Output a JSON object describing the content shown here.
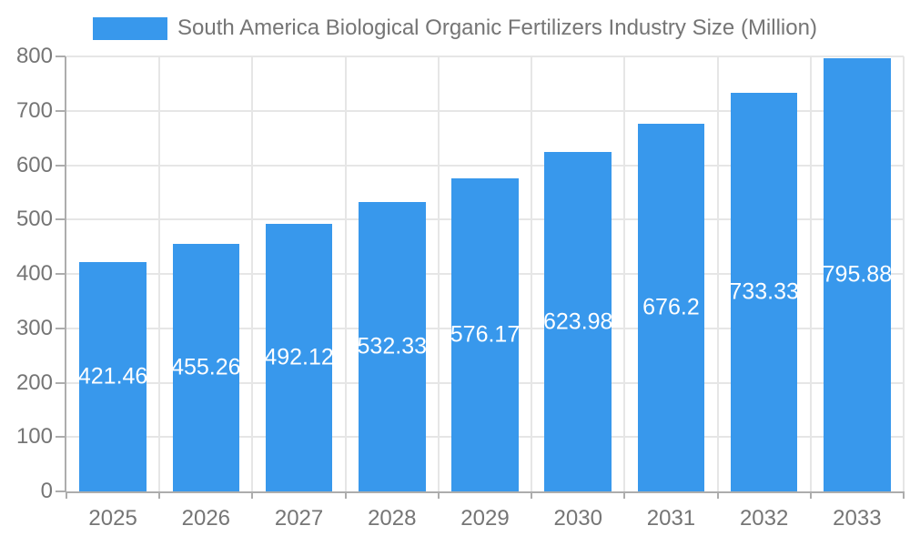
{
  "chart_data": {
    "type": "bar",
    "title": "South America Biological Organic Fertilizers Industry Size (Million)",
    "categories": [
      "2025",
      "2026",
      "2027",
      "2028",
      "2029",
      "2030",
      "2031",
      "2032",
      "2033"
    ],
    "values": [
      421.46,
      455.26,
      492.12,
      532.33,
      576.17,
      623.98,
      676.2,
      733.33,
      795.88
    ],
    "value_labels": [
      "421.46",
      "455.26",
      "492.12",
      "532.33",
      "576.17",
      "623.98",
      "676.2",
      "733.33",
      "795.88"
    ],
    "xlabel": "",
    "ylabel": "",
    "ylim": [
      0,
      800
    ],
    "yticks": [
      0,
      100,
      200,
      300,
      400,
      500,
      600,
      700,
      800
    ],
    "grid": true,
    "legend_position": "top",
    "colors": {
      "bar": "#3898EC",
      "gridline": "#E6E6E6",
      "axis": "#ADADAD",
      "tick_label": "#757575",
      "title": "#757575",
      "value_label": "#FFFFFF",
      "background": "#FFFFFF"
    }
  }
}
